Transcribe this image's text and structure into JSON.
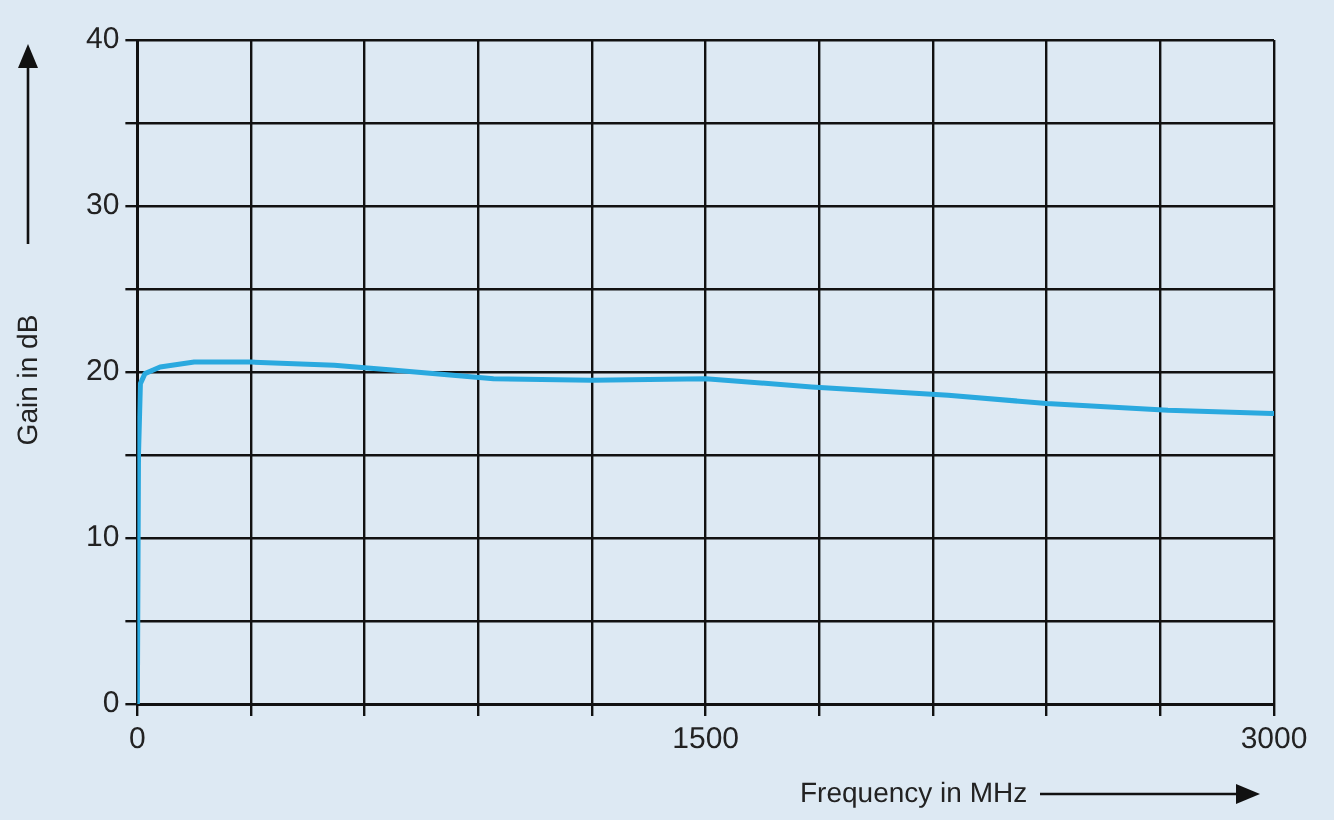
{
  "chart_data": {
    "type": "line",
    "xlabel": "Frequency in MHz",
    "ylabel": "Gain in dB",
    "x": [
      0,
      3,
      8,
      20,
      60,
      150,
      300,
      520,
      680,
      940,
      1200,
      1500,
      1780,
      2140,
      2400,
      2720,
      3000
    ],
    "series": [
      {
        "color": "#2aa9df",
        "values": [
          0,
          15,
          19.3,
          19.9,
          20.3,
          20.6,
          20.6,
          20.4,
          20.1,
          19.6,
          19.5,
          19.6,
          19.1,
          18.6,
          18.1,
          17.7,
          17.5
        ]
      }
    ],
    "xlim": [
      0,
      3000
    ],
    "ylim": [
      0,
      40
    ],
    "xticks": [
      0,
      {
        "value": 300,
        "label": null
      },
      {
        "value": 600,
        "label": null
      },
      {
        "value": 900,
        "label": null
      },
      {
        "value": 1200,
        "label": null
      },
      1500,
      {
        "value": 1800,
        "label": null
      },
      {
        "value": 2100,
        "label": null
      },
      {
        "value": 2400,
        "label": null
      },
      {
        "value": 2700,
        "label": null
      },
      3000
    ],
    "yticks": [
      0,
      {
        "value": 5,
        "label": null
      },
      10,
      {
        "value": 15,
        "label": null
      },
      20,
      {
        "value": 25,
        "label": null
      },
      30,
      {
        "value": 35,
        "label": null
      },
      40
    ],
    "grid": true,
    "legend": false,
    "marker": "none",
    "line_style": "solid"
  }
}
